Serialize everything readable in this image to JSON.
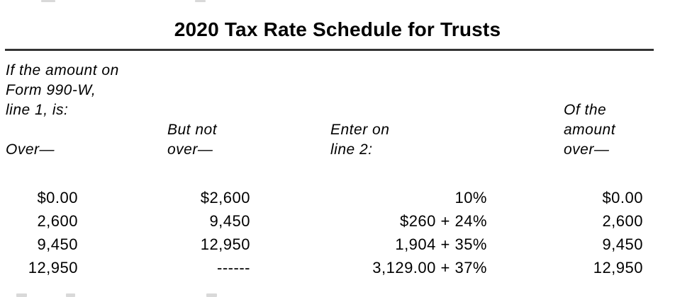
{
  "title": "2020 Tax Rate Schedule for Trusts",
  "table": {
    "headers": {
      "col1_intro_line1": "If the amount on",
      "col1_intro_line2": "Form 990-W,",
      "col1_intro_line3": "line 1, is:",
      "col1_label": "Over—",
      "col2_line1": "But not",
      "col2_line2": "over—",
      "col3_line1": "Enter on",
      "col3_line2": "line 2:",
      "col4_line1": "Of the",
      "col4_line2": "amount",
      "col4_line3": "over—"
    },
    "rows": [
      {
        "over": "$0.00",
        "but_not_over": "$2,600",
        "enter_on_line_2": "10%",
        "of_the_amount_over": "$0.00"
      },
      {
        "over": "2,600",
        "but_not_over": "9,450",
        "enter_on_line_2": "$260 + 24%",
        "of_the_amount_over": "2,600"
      },
      {
        "over": "9,450",
        "but_not_over": "12,950",
        "enter_on_line_2": "1,904 + 35%",
        "of_the_amount_over": "9,450"
      },
      {
        "over": "12,950",
        "but_not_over": "------",
        "enter_on_line_2": "3,129.00 + 37%",
        "of_the_amount_over": "12,950"
      }
    ]
  },
  "colors": {
    "text": "#000000",
    "rule": "#343434",
    "background": "#ffffff"
  }
}
